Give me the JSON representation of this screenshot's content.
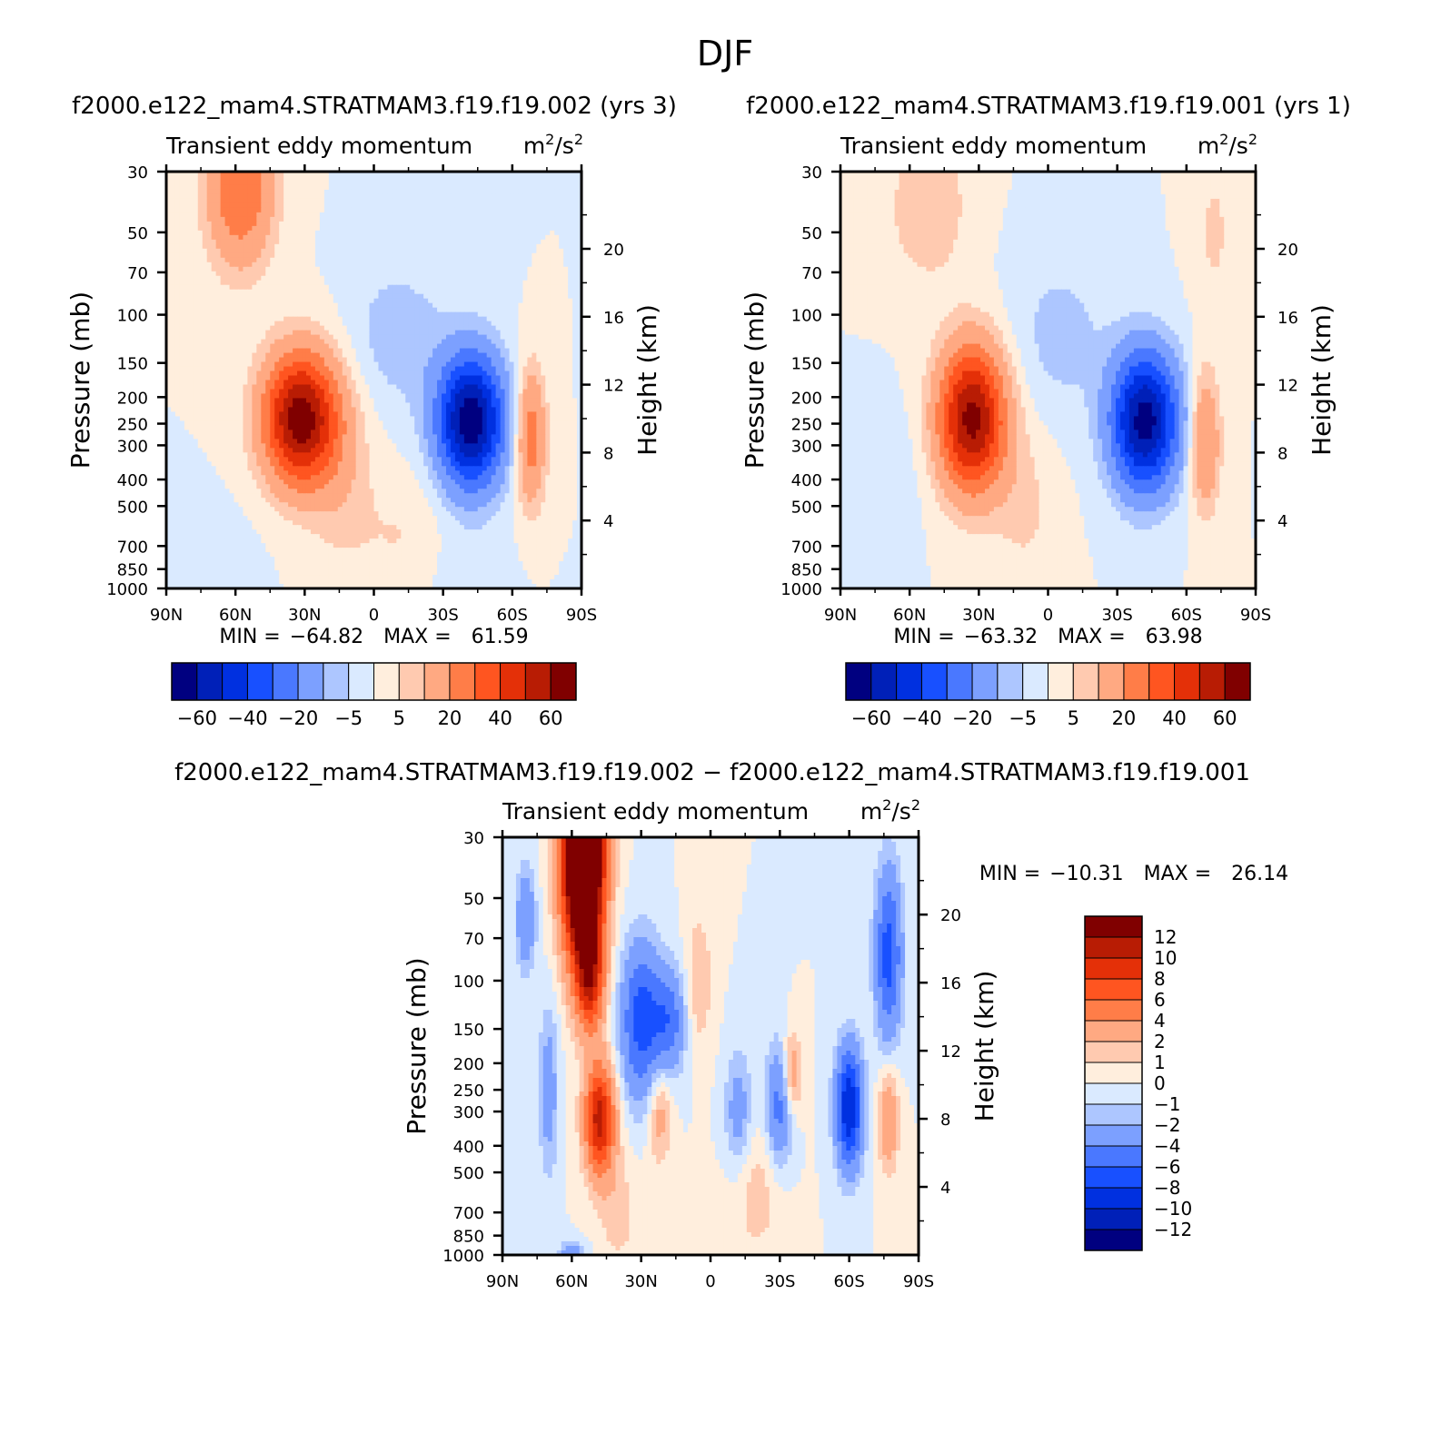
{
  "page_title": "DJF",
  "chart_data": [
    {
      "type": "contour",
      "case_label": "f2000.e122_mam4.STRATMAM3.f19.f19.002  (yrs  3)",
      "title": "Transient  eddy  momentum",
      "units": {
        "base": "m",
        "base_exp": "2",
        "sep": "/s",
        "sep_exp": "2"
      },
      "ylabel": "Pressure  (mb)",
      "ylabel_right": "Height  (km)",
      "x_ticks": [
        "90N",
        "60N",
        "30N",
        "0",
        "30S",
        "60S",
        "90S"
      ],
      "y_ticks": [
        "30",
        "50",
        "70",
        "100",
        "150",
        "200",
        "250",
        "300",
        "400",
        "500",
        "700",
        "850",
        "1000"
      ],
      "height_ticks": [
        "20",
        "16",
        "12",
        "8",
        "4"
      ],
      "stats": {
        "min_label": "MIN  =",
        "min": "−64.82",
        "max_label": "MAX  =",
        "max": "61.59"
      },
      "levels": [
        -70,
        -60,
        -50,
        -40,
        -30,
        -20,
        -10,
        -5,
        0,
        5,
        10,
        20,
        30,
        40,
        50,
        60,
        70
      ],
      "level_labels": [
        "−60",
        "−40",
        "−20",
        "−5",
        "5",
        "20",
        "40",
        "60"
      ],
      "features": [
        {
          "lat": 32,
          "p": 240,
          "amp": 66,
          "slat": 11,
          "slp": 0.38
        },
        {
          "lat": 58,
          "p": 35,
          "amp": 30,
          "slat": 10,
          "slp": 0.45
        },
        {
          "lat": -42,
          "p": 245,
          "amp": -68,
          "slat": 10,
          "slp": 0.38
        },
        {
          "lat": -68,
          "p": 280,
          "amp": 26,
          "slat": 4.5,
          "slp": 0.4
        },
        {
          "lat": 15,
          "p": 350,
          "amp": 8,
          "slat": 10,
          "slp": 0.6
        },
        {
          "lat": -12,
          "p": 650,
          "amp": 5,
          "slat": 14,
          "slp": 0.4
        },
        {
          "lat": -10,
          "p": 120,
          "amp": -8,
          "slat": 16,
          "slp": 0.45
        },
        {
          "lat": -50,
          "p": 35,
          "amp": -4,
          "slat": 6,
          "slp": 0.5
        },
        {
          "lat": 75,
          "p": 800,
          "amp": -4,
          "slat": 14,
          "slp": 0.3
        },
        {
          "lat": -40,
          "p": 900,
          "amp": -4,
          "slat": 12,
          "slp": 0.3
        }
      ]
    },
    {
      "type": "contour",
      "case_label": "f2000.e122_mam4.STRATMAM3.f19.f19.001  (yrs  1)",
      "title": "Transient  eddy  momentum",
      "units": {
        "base": "m",
        "base_exp": "2",
        "sep": "/s",
        "sep_exp": "2"
      },
      "ylabel": "Pressure  (mb)",
      "ylabel_right": "Height  (km)",
      "x_ticks": [
        "90N",
        "60N",
        "30N",
        "0",
        "30S",
        "60S",
        "90S"
      ],
      "y_ticks": [
        "30",
        "50",
        "70",
        "100",
        "150",
        "200",
        "250",
        "300",
        "400",
        "500",
        "700",
        "850",
        "1000"
      ],
      "height_ticks": [
        "20",
        "16",
        "12",
        "8",
        "4"
      ],
      "stats": {
        "min_label": "MIN  =",
        "min": "−63.32",
        "max_label": "MAX  =",
        "max": "63.98"
      },
      "levels": [
        -70,
        -60,
        -50,
        -40,
        -30,
        -20,
        -10,
        -5,
        0,
        5,
        10,
        20,
        30,
        40,
        50,
        60,
        70
      ],
      "level_labels": [
        "−60",
        "−40",
        "−20",
        "−5",
        "5",
        "20",
        "40",
        "60"
      ],
      "features": [
        {
          "lat": 33,
          "p": 240,
          "amp": 64,
          "slat": 10,
          "slp": 0.42
        },
        {
          "lat": 52,
          "p": 40,
          "amp": 10,
          "slat": 12,
          "slp": 0.45
        },
        {
          "lat": -42,
          "p": 245,
          "amp": -65,
          "slat": 10,
          "slp": 0.4
        },
        {
          "lat": -68,
          "p": 290,
          "amp": 22,
          "slat": 4.5,
          "slp": 0.4
        },
        {
          "lat": 10,
          "p": 500,
          "amp": 6,
          "slat": 10,
          "slp": 0.5
        },
        {
          "lat": -5,
          "p": 120,
          "amp": -7,
          "slat": 15,
          "slp": 0.5
        },
        {
          "lat": -72,
          "p": 50,
          "amp": 6,
          "slat": 6,
          "slp": 0.5
        },
        {
          "lat": 70,
          "p": 400,
          "amp": -4,
          "slat": 10,
          "slp": 0.4
        }
      ]
    },
    {
      "type": "contour",
      "case_label": "f2000.e122_mam4.STRATMAM3.f19.f19.002  −  f2000.e122_mam4.STRATMAM3.f19.f19.001",
      "title": "Transient  eddy  momentum",
      "units": {
        "base": "m",
        "base_exp": "2",
        "sep": "/s",
        "sep_exp": "2"
      },
      "ylabel": "Pressure  (mb)",
      "ylabel_right": "Height  (km)",
      "x_ticks": [
        "90N",
        "60N",
        "30N",
        "0",
        "30S",
        "60S",
        "90S"
      ],
      "y_ticks": [
        "30",
        "50",
        "70",
        "100",
        "150",
        "200",
        "250",
        "300",
        "400",
        "500",
        "700",
        "850",
        "1000"
      ],
      "height_ticks": [
        "20",
        "16",
        "12",
        "8",
        "4"
      ],
      "stats": {
        "min_label": "MIN  =",
        "min": "−10.31",
        "max_label": "MAX  =",
        "max": "26.14"
      },
      "levels": [
        -14,
        -12,
        -10,
        -8,
        -6,
        -4,
        -2,
        -1,
        0,
        1,
        2,
        4,
        6,
        8,
        10,
        12,
        14
      ],
      "level_labels": [
        "12",
        "10",
        "8",
        "6",
        "4",
        "2",
        "1",
        "0",
        "−1",
        "−2",
        "−4",
        "−6",
        "−8",
        "−10",
        "−12"
      ],
      "features": [
        {
          "lat": 55,
          "p": 35,
          "amp": 26,
          "slat": 6,
          "slp": 0.6
        },
        {
          "lat": 52,
          "p": 100,
          "amp": 8,
          "slat": 4,
          "slp": 0.3
        },
        {
          "lat": 48,
          "p": 320,
          "amp": 11,
          "slat": 4.5,
          "slp": 0.32
        },
        {
          "lat": 30,
          "p": 140,
          "amp": -7,
          "slat": 6,
          "slp": 0.45
        },
        {
          "lat": 18,
          "p": 140,
          "amp": -5,
          "slat": 5,
          "slp": 0.3
        },
        {
          "lat": 70,
          "p": 250,
          "amp": -3,
          "slat": 3,
          "slp": 0.5
        },
        {
          "lat": 22,
          "p": 300,
          "amp": 3,
          "slat": 3.5,
          "slp": 0.3
        },
        {
          "lat": -30,
          "p": 280,
          "amp": -5,
          "slat": 4,
          "slp": 0.35
        },
        {
          "lat": -12,
          "p": 300,
          "amp": -3,
          "slat": 4,
          "slp": 0.35
        },
        {
          "lat": -35,
          "p": 220,
          "amp": 4,
          "slat": 3,
          "slp": 0.25
        },
        {
          "lat": -60,
          "p": 290,
          "amp": -10,
          "slat": 4,
          "slp": 0.35
        },
        {
          "lat": -77,
          "p": 80,
          "amp": -7,
          "slat": 4,
          "slp": 0.5
        },
        {
          "lat": -77,
          "p": 320,
          "amp": 4,
          "slat": 3,
          "slp": 0.3
        },
        {
          "lat": 5,
          "p": 100,
          "amp": 2,
          "slat": 4,
          "slp": 0.4
        },
        {
          "lat": 80,
          "p": 60,
          "amp": -4,
          "slat": 3,
          "slp": 0.3
        },
        {
          "lat": 60,
          "p": 990,
          "amp": -3,
          "slat": 4,
          "slp": 0.08
        },
        {
          "lat": -20,
          "p": 600,
          "amp": 1.5,
          "slat": 8,
          "slp": 0.4
        },
        {
          "lat": 40,
          "p": 700,
          "amp": 1.5,
          "slat": 6,
          "slp": 0.35
        }
      ]
    }
  ],
  "palette": {
    "negative": [
      "#000080",
      "#0020b8",
      "#0030e0",
      "#1850ff",
      "#4a78ff",
      "#7ca0ff",
      "#adc6ff",
      "#daeaff"
    ],
    "positive": [
      "#ffeedd",
      "#ffcab0",
      "#ffa982",
      "#ff7d48",
      "#ff5520",
      "#e43008",
      "#b81c04",
      "#800000"
    ]
  }
}
